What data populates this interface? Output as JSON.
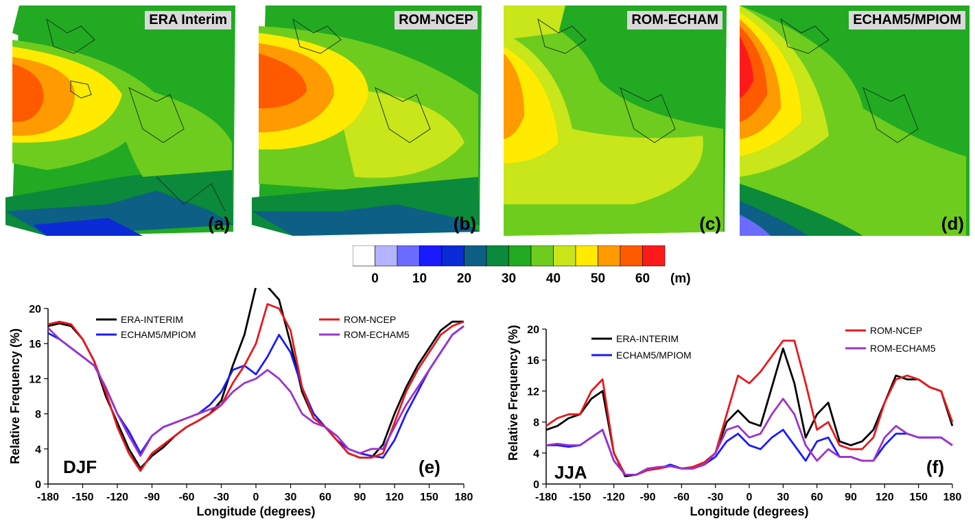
{
  "maps": [
    {
      "title": "ERA Interim",
      "letter": "(a)"
    },
    {
      "title": "ROM-NCEP",
      "letter": "(b)"
    },
    {
      "title": "ROM-ECHAM",
      "letter": "(c)"
    },
    {
      "title": "ECHAM5/MPIOM",
      "letter": "(d)"
    }
  ],
  "colorbar": {
    "unit": "(m)",
    "tick_labels": [
      "0",
      "10",
      "20",
      "30",
      "40",
      "50",
      "60"
    ],
    "colors": [
      "#ffffff",
      "#b3b3ff",
      "#6b6bff",
      "#1a1aff",
      "#0b2bd6",
      "#0d5f86",
      "#0a8a3a",
      "#22aa22",
      "#6ecc1e",
      "#c8e61a",
      "#ffea00",
      "#ff9a00",
      "#ff5a00",
      "#ff1a1a"
    ]
  },
  "chart_data": [
    {
      "type": "line",
      "season_label": "DJF",
      "panel_letter": "(e)",
      "xlabel": "Longitude (degrees)",
      "ylabel": "Relative Frequency (%)",
      "xlim": [
        -180,
        180
      ],
      "ylim": [
        0,
        20
      ],
      "xticks": [
        -180,
        -150,
        -120,
        -90,
        -60,
        -30,
        0,
        30,
        60,
        90,
        120,
        150,
        180
      ],
      "yticks": [
        0,
        4,
        8,
        12,
        16,
        20
      ],
      "x": [
        -180,
        -170,
        -160,
        -150,
        -140,
        -130,
        -120,
        -110,
        -100,
        -90,
        -80,
        -70,
        -60,
        -50,
        -40,
        -30,
        -20,
        -10,
        0,
        10,
        20,
        30,
        40,
        50,
        60,
        70,
        80,
        90,
        100,
        110,
        120,
        130,
        140,
        150,
        160,
        170,
        180
      ],
      "series": [
        {
          "name": "ERA-INTERIM",
          "color": "#000000",
          "values": [
            18,
            18.3,
            18,
            16.5,
            14,
            10,
            7,
            4,
            1.8,
            3.2,
            4.2,
            5.5,
            6.5,
            7.2,
            8,
            9.5,
            13.5,
            17,
            22.5,
            22.5,
            21,
            16,
            10.5,
            7.5,
            6.5,
            5,
            3.5,
            3,
            3,
            4.5,
            8,
            11,
            13.5,
            15.5,
            17.5,
            18.5,
            18.5
          ]
        },
        {
          "name": "ECHAM5/MPIOM",
          "color": "#1a1aff",
          "values": [
            17.2,
            16.5,
            15.5,
            14.5,
            13.5,
            11,
            8,
            6,
            3.5,
            5.5,
            6.5,
            7,
            7.5,
            8,
            9,
            10.5,
            13,
            13.5,
            12.5,
            14.5,
            17,
            15,
            11,
            8,
            6.5,
            5,
            4,
            3.5,
            3.2,
            3,
            5,
            8,
            10.5,
            13,
            15,
            17,
            18
          ]
        },
        {
          "name": "ROM-NCEP",
          "color": "#e8181c",
          "values": [
            18.2,
            18.5,
            18.2,
            16.5,
            14,
            10.5,
            6.5,
            3.5,
            1.5,
            3.5,
            4.5,
            5.5,
            6.5,
            7.2,
            8,
            9,
            11.5,
            13.5,
            16,
            20.5,
            20,
            17.5,
            11,
            7.5,
            6.5,
            5,
            3.5,
            3,
            3,
            3.5,
            7,
            10.5,
            13,
            15,
            17,
            18,
            18.5
          ]
        },
        {
          "name": "ROM-ECHAM5",
          "color": "#9a33cc",
          "values": [
            17.8,
            16.5,
            15.5,
            14.5,
            13.5,
            11,
            8,
            5.5,
            3.2,
            5.5,
            6.5,
            7,
            7.5,
            8,
            8.5,
            9,
            10.5,
            11.5,
            12,
            13,
            12,
            10.5,
            8,
            7,
            6.5,
            5.5,
            4,
            3.5,
            4,
            4,
            6.5,
            9,
            11,
            13,
            15,
            17,
            18
          ]
        }
      ]
    },
    {
      "type": "line",
      "season_label": "JJA",
      "panel_letter": "(f)",
      "xlabel": "Longitude (degrees)",
      "ylabel": "Relative Frequency (%)",
      "xlim": [
        -180,
        180
      ],
      "ylim": [
        0,
        20
      ],
      "xticks": [
        -180,
        -150,
        -120,
        -90,
        -60,
        -30,
        0,
        30,
        60,
        90,
        120,
        150,
        180
      ],
      "yticks": [
        0,
        4,
        8,
        12,
        16,
        20
      ],
      "x": [
        -180,
        -170,
        -160,
        -150,
        -140,
        -130,
        -120,
        -110,
        -100,
        -90,
        -80,
        -70,
        -60,
        -50,
        -40,
        -30,
        -20,
        -10,
        0,
        10,
        20,
        30,
        40,
        50,
        60,
        70,
        80,
        90,
        100,
        110,
        120,
        130,
        140,
        150,
        160,
        170,
        180
      ],
      "series": [
        {
          "name": "ERA-INTERIM",
          "color": "#000000",
          "values": [
            7,
            7.5,
            8.5,
            9,
            11,
            12,
            4,
            1,
            1.2,
            1.8,
            2,
            2.5,
            2,
            2,
            2.5,
            4,
            8,
            9.5,
            8,
            7.5,
            12.5,
            17.5,
            13,
            6,
            9,
            10.5,
            5.5,
            5,
            5.5,
            7,
            10.5,
            14,
            13.5,
            13.5,
            12.5,
            12,
            7.5
          ]
        },
        {
          "name": "ECHAM5/MPIOM",
          "color": "#1a1aff",
          "values": [
            5,
            5,
            4.8,
            5,
            6,
            7,
            3,
            1.2,
            1.2,
            2,
            2,
            2.5,
            2,
            2,
            2.5,
            3.5,
            5.5,
            6.5,
            5,
            4.5,
            6,
            7,
            5,
            3,
            5.5,
            6,
            3.5,
            3.5,
            3,
            3,
            5,
            6.5,
            6.5,
            6,
            6,
            6,
            5
          ]
        },
        {
          "name": "ROM-NCEP",
          "color": "#e8181c",
          "values": [
            7.5,
            8.5,
            9,
            9,
            12,
            13.5,
            4,
            1.2,
            1.2,
            1.8,
            2,
            2.3,
            2,
            2.2,
            2.8,
            4,
            9,
            14,
            13,
            14.5,
            16.5,
            18.5,
            18.5,
            13,
            7,
            8,
            5,
            4.5,
            4.5,
            6,
            10.5,
            13.5,
            14,
            13.5,
            12.5,
            12,
            8
          ]
        },
        {
          "name": "ROM-ECHAM5",
          "color": "#9a33cc",
          "values": [
            5,
            5.2,
            5,
            5,
            6,
            7,
            3,
            1.2,
            1.2,
            2,
            2.2,
            2.3,
            2,
            2,
            2.5,
            4,
            7,
            7.5,
            6,
            6.5,
            9,
            11,
            9,
            5,
            3,
            4.5,
            3.5,
            3.5,
            3,
            3,
            6,
            7.5,
            6.5,
            6,
            6,
            6,
            5
          ]
        }
      ]
    }
  ]
}
